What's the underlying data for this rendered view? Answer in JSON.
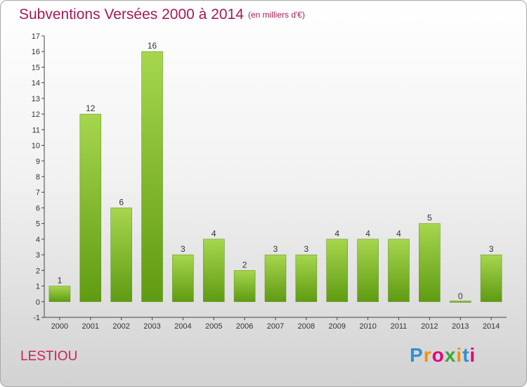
{
  "header": {
    "title": "Subventions Versées 2000 à 2014",
    "unit": "(en milliers d'€)"
  },
  "commune": "LESTIOU",
  "logo": {
    "letters": [
      "P",
      "r",
      "o",
      "x",
      "i",
      "t",
      "i"
    ],
    "colors": [
      "#2f8fd8",
      "#f39200",
      "#e4007f",
      "#3aaa35",
      "#f39200",
      "#2f8fd8",
      "#e4007f"
    ]
  },
  "colors": {
    "bar_light": "#a6d64e",
    "bar_dark": "#5f9b12",
    "title": "#a3195b"
  },
  "chart_data": {
    "type": "bar",
    "title": "Subventions Versées 2000 à 2014",
    "categories": [
      "2000",
      "2001",
      "2002",
      "2003",
      "2004",
      "2005",
      "2006",
      "2007",
      "2008",
      "2009",
      "2010",
      "2011",
      "2012",
      "2013",
      "2014"
    ],
    "values": [
      1,
      12,
      6,
      16,
      3,
      4,
      2,
      3,
      3,
      4,
      4,
      4,
      5,
      0,
      3
    ],
    "ylim": [
      -1,
      17
    ],
    "yticks": [
      -1,
      0,
      1,
      2,
      3,
      4,
      5,
      6,
      7,
      8,
      9,
      10,
      11,
      12,
      13,
      14,
      15,
      16,
      17
    ],
    "xlabel": "",
    "ylabel": "",
    "grid": false,
    "legend": "none"
  }
}
